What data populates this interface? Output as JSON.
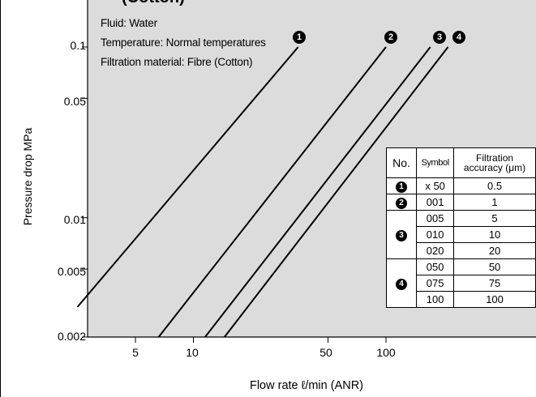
{
  "title": "(Cotton)",
  "conditions": {
    "fluid": "Fluid: Water",
    "temperature": "Temperature: Normal temperatures",
    "material": "Filtration material: Fibre (Cotton)"
  },
  "colors": {
    "plot_bg": "#dcdcdc",
    "line": "#000000",
    "axis": "#000000"
  },
  "chart_data": {
    "type": "line",
    "x_scale": "log",
    "y_scale": "log",
    "xlabel": "Flow rate ℓ/min (ANR)",
    "ylabel": "Pressure drop  MPa",
    "xlim": [
      2.5,
      800
    ],
    "ylim": [
      0.002,
      0.2
    ],
    "x_ticks": [
      5,
      10,
      50,
      100
    ],
    "x_tick_labels": [
      "5",
      "10",
      "50",
      "100"
    ],
    "y_ticks": [
      0.1,
      0.05,
      0.01,
      0.005,
      0.002
    ],
    "y_tick_labels": [
      "0.1",
      "0.05",
      "0.01",
      "0.005",
      "0.002"
    ],
    "grid": false,
    "series": [
      {
        "marker": "1",
        "points": [
          [
            2.5,
            0.003
          ],
          [
            35,
            0.1
          ]
        ]
      },
      {
        "marker": "2",
        "points": [
          [
            6.6,
            0.002
          ],
          [
            100,
            0.1
          ]
        ]
      },
      {
        "marker": "3",
        "points": [
          [
            11.5,
            0.002
          ],
          [
            170,
            0.1
          ]
        ]
      },
      {
        "marker": "4",
        "points": [
          [
            14.5,
            0.002
          ],
          [
            210,
            0.1
          ]
        ]
      }
    ]
  },
  "accuracy_table": {
    "headers": {
      "no": "No.",
      "symbol": "Symbol",
      "accuracy_line1": "Filtration",
      "accuracy_line2": "accuracy (μm)"
    },
    "groups": [
      {
        "no": "1",
        "rows": [
          {
            "symbol": "x 50",
            "accuracy": "0.5"
          }
        ]
      },
      {
        "no": "2",
        "rows": [
          {
            "symbol": "001",
            "accuracy": "1"
          }
        ]
      },
      {
        "no": "3",
        "rows": [
          {
            "symbol": "005",
            "accuracy": "5"
          },
          {
            "symbol": "010",
            "accuracy": "10"
          },
          {
            "symbol": "020",
            "accuracy": "20"
          }
        ]
      },
      {
        "no": "4",
        "rows": [
          {
            "symbol": "050",
            "accuracy": "50"
          },
          {
            "symbol": "075",
            "accuracy": "75"
          },
          {
            "symbol": "100",
            "accuracy": "100"
          }
        ]
      }
    ]
  }
}
